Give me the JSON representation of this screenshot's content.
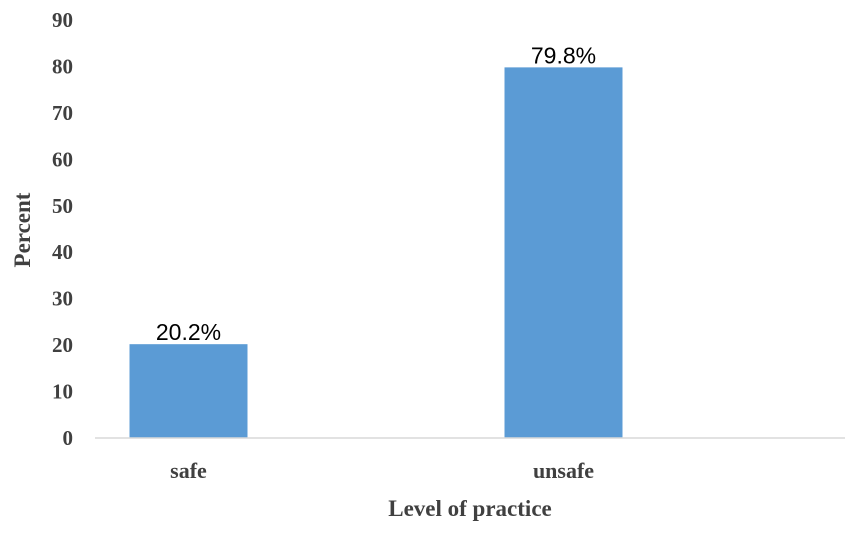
{
  "chart_data": {
    "type": "bar",
    "categories": [
      "safe",
      "unsafe"
    ],
    "values": [
      20.2,
      79.8
    ],
    "data_labels": [
      "20.2%",
      "79.8%"
    ],
    "title": "",
    "xlabel": "Level of practice",
    "ylabel": "Percent",
    "ylim": [
      0,
      90
    ],
    "yticks": [
      "0",
      "10",
      "20",
      "30",
      "40",
      "50",
      "60",
      "70",
      "80",
      "90"
    ],
    "grid": false,
    "legend": "none",
    "bar_color": "#5b9bd5",
    "axis_color": "#d9d9d9"
  }
}
